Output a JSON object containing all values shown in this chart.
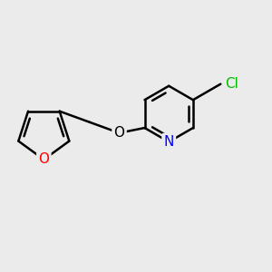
{
  "background_color": "#ebebeb",
  "bond_color": "#000000",
  "bond_width": 1.8,
  "atom_colors": {
    "O_furan": "#ff0000",
    "O_linker": "#000000",
    "N": "#0000ff",
    "Cl": "#00bb00",
    "C": "#000000"
  },
  "font_size": 11
}
